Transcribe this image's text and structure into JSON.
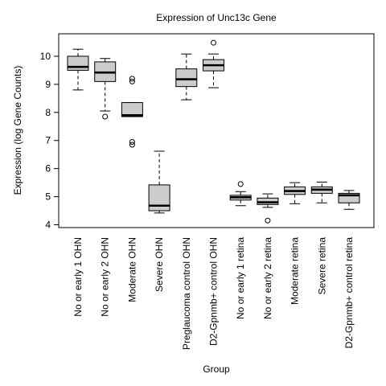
{
  "chart_data": {
    "type": "box",
    "title": "Expression of  Unc13c Gene",
    "xlabel": "Group",
    "ylabel": "Expression (log Gene Counts)",
    "ylim": [
      3.9,
      10.8
    ],
    "yticks": [
      4,
      5,
      6,
      7,
      8,
      9,
      10
    ],
    "grid": false,
    "box_fill": "#cccccc",
    "categories": [
      "No or early 1 OHN",
      "No or early 2 OHN",
      "Moderate OHN",
      "Severe OHN",
      "Preglaucoma control OHN",
      "D2-Gpnmb+ control OHN",
      "No or early 1 retina",
      "No or early 2 retina",
      "Moderate retina",
      "Severe retina",
      "D2-Gpnmb+ control retina"
    ],
    "boxes": [
      {
        "whisker_low": 8.8,
        "q1": 9.5,
        "median": 9.62,
        "q3": 10.0,
        "whisker_high": 10.25,
        "outliers": []
      },
      {
        "whisker_low": 8.05,
        "q1": 9.1,
        "median": 9.42,
        "q3": 9.8,
        "whisker_high": 9.92,
        "outliers": [
          7.85
        ]
      },
      {
        "whisker_low": 7.85,
        "q1": 7.85,
        "median": 7.9,
        "q3": 8.35,
        "whisker_high": 8.35,
        "outliers": [
          9.2,
          9.1,
          6.95,
          6.85
        ]
      },
      {
        "whisker_low": 4.42,
        "q1": 4.5,
        "median": 4.68,
        "q3": 5.42,
        "whisker_high": 6.62,
        "outliers": []
      },
      {
        "whisker_low": 8.45,
        "q1": 8.92,
        "median": 9.18,
        "q3": 9.55,
        "whisker_high": 10.08,
        "outliers": []
      },
      {
        "whisker_low": 8.88,
        "q1": 9.48,
        "median": 9.68,
        "q3": 9.88,
        "whisker_high": 10.08,
        "outliers": [
          10.48
        ]
      },
      {
        "whisker_low": 4.68,
        "q1": 4.88,
        "median": 4.98,
        "q3": 5.05,
        "whisker_high": 5.18,
        "outliers": [
          5.45
        ]
      },
      {
        "whisker_low": 4.62,
        "q1": 4.72,
        "median": 4.8,
        "q3": 4.95,
        "whisker_high": 5.1,
        "outliers": [
          4.15
        ]
      },
      {
        "whisker_low": 4.75,
        "q1": 5.08,
        "median": 5.2,
        "q3": 5.35,
        "whisker_high": 5.5,
        "outliers": []
      },
      {
        "whisker_low": 4.78,
        "q1": 5.12,
        "median": 5.25,
        "q3": 5.35,
        "whisker_high": 5.52,
        "outliers": []
      },
      {
        "whisker_low": 4.55,
        "q1": 4.78,
        "median": 5.05,
        "q3": 5.12,
        "whisker_high": 5.22,
        "outliers": []
      }
    ]
  }
}
